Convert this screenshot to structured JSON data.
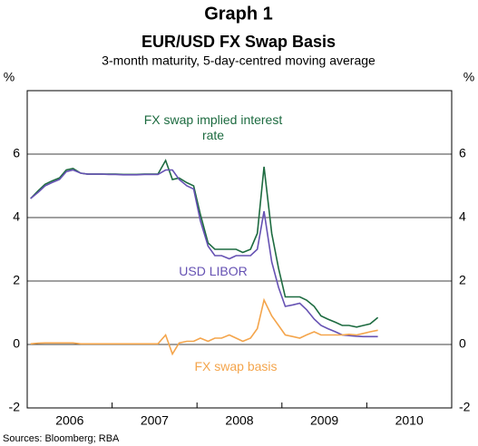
{
  "chart_data": {
    "type": "line",
    "title": "Graph 1",
    "subtitle": "EUR/USD FX Swap Basis",
    "description": "3-month maturity, 5-day-centred moving average",
    "y_unit_left": "%",
    "y_unit_right": "%",
    "source": "Sources: Bloomberg; RBA",
    "xlim": [
      2006,
      2011
    ],
    "xticks": [
      2006,
      2007,
      2008,
      2009,
      2010
    ],
    "ylim": [
      -2,
      8
    ],
    "yticks": [
      -2,
      0,
      2,
      4,
      6
    ],
    "grid": true,
    "x": [
      2006.04,
      2006.13,
      2006.21,
      2006.29,
      2006.38,
      2006.46,
      2006.54,
      2006.63,
      2006.71,
      2006.79,
      2006.88,
      2006.96,
      2007.04,
      2007.13,
      2007.21,
      2007.29,
      2007.38,
      2007.46,
      2007.54,
      2007.63,
      2007.71,
      2007.79,
      2007.88,
      2007.96,
      2008.04,
      2008.13,
      2008.21,
      2008.29,
      2008.38,
      2008.46,
      2008.54,
      2008.63,
      2008.71,
      2008.79,
      2008.88,
      2008.96,
      2009.04,
      2009.13,
      2009.21,
      2009.29,
      2009.38,
      2009.46,
      2009.54,
      2009.63,
      2009.71,
      2009.79,
      2009.88,
      2009.96,
      2010.04,
      2010.13
    ],
    "series": [
      {
        "name": "FX swap implied interest rate",
        "color": "#1d6b40",
        "values": [
          4.6,
          4.85,
          5.05,
          5.15,
          5.25,
          5.5,
          5.55,
          5.4,
          5.37,
          5.37,
          5.37,
          5.37,
          5.37,
          5.36,
          5.36,
          5.36,
          5.37,
          5.37,
          5.37,
          5.8,
          5.2,
          5.25,
          5.1,
          5.0,
          4.1,
          3.2,
          3.0,
          3.0,
          3.0,
          3.0,
          2.9,
          3.0,
          3.5,
          5.6,
          3.5,
          2.4,
          1.5,
          1.5,
          1.5,
          1.4,
          1.2,
          0.9,
          0.8,
          0.7,
          0.6,
          0.6,
          0.55,
          0.6,
          0.65,
          0.85
        ]
      },
      {
        "name": "USD LIBOR",
        "color": "#6652b3",
        "values": [
          4.6,
          4.8,
          5.0,
          5.1,
          5.2,
          5.45,
          5.5,
          5.4,
          5.37,
          5.37,
          5.37,
          5.36,
          5.36,
          5.35,
          5.35,
          5.35,
          5.36,
          5.36,
          5.36,
          5.5,
          5.5,
          5.2,
          5.0,
          4.9,
          3.9,
          3.1,
          2.8,
          2.8,
          2.7,
          2.8,
          2.8,
          2.8,
          3.0,
          4.2,
          2.6,
          1.8,
          1.2,
          1.25,
          1.3,
          1.1,
          0.8,
          0.6,
          0.5,
          0.4,
          0.3,
          0.28,
          0.26,
          0.25,
          0.25,
          0.25
        ]
      },
      {
        "name": "FX swap basis",
        "color": "#f4a54c",
        "values": [
          0.02,
          0.04,
          0.05,
          0.05,
          0.05,
          0.05,
          0.05,
          0.02,
          0.02,
          0.02,
          0.02,
          0.02,
          0.02,
          0.02,
          0.02,
          0.02,
          0.02,
          0.02,
          0.02,
          0.3,
          -0.3,
          0.05,
          0.1,
          0.1,
          0.2,
          0.1,
          0.2,
          0.2,
          0.3,
          0.2,
          0.1,
          0.2,
          0.5,
          1.4,
          0.9,
          0.6,
          0.3,
          0.25,
          0.2,
          0.3,
          0.4,
          0.3,
          0.3,
          0.3,
          0.3,
          0.32,
          0.3,
          0.35,
          0.4,
          0.45
        ]
      }
    ]
  }
}
